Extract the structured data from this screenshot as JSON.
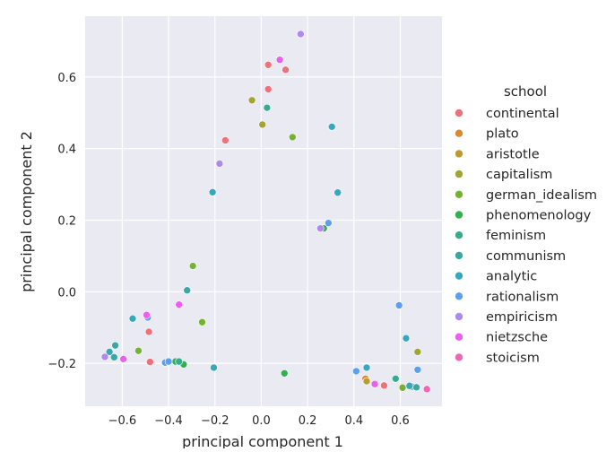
{
  "chart_data": {
    "type": "scatter",
    "xlabel": "principal component 1",
    "ylabel": "principal component 2",
    "xlim": [
      -0.76,
      0.78
    ],
    "ylim": [
      -0.32,
      0.77
    ],
    "xticks": [
      -0.6,
      -0.4,
      -0.2,
      0.0,
      0.2,
      0.4,
      0.6
    ],
    "yticks": [
      -0.2,
      0.0,
      0.2,
      0.4,
      0.6
    ],
    "xtick_labels": [
      "−0.6",
      "−0.4",
      "−0.2",
      "0.0",
      "0.2",
      "0.4",
      "0.6"
    ],
    "ytick_labels": [
      "−0.2",
      "0.0",
      "0.2",
      "0.4",
      "0.6"
    ],
    "grid": true,
    "background": "#eaeaf2",
    "legend_title": "school",
    "legend_placement": "right",
    "series": [
      {
        "name": "continental",
        "color": "#f0707a",
        "points": [
          [
            0.03,
            0.634
          ],
          [
            0.105,
            0.62
          ],
          [
            0.03,
            0.566
          ],
          [
            -0.155,
            0.423
          ],
          [
            -0.485,
            -0.112
          ],
          [
            -0.48,
            -0.196
          ],
          [
            0.53,
            -0.262
          ]
        ]
      },
      {
        "name": "plato",
        "color": "#db8930",
        "points": [
          [
            0.45,
            -0.243
          ]
        ]
      },
      {
        "name": "aristotle",
        "color": "#bb9a31",
        "points": [
          [
            0.455,
            -0.25
          ]
        ]
      },
      {
        "name": "capitalism",
        "color": "#a3a432",
        "points": [
          [
            -0.04,
            0.535
          ],
          [
            0.005,
            0.467
          ],
          [
            0.675,
            -0.168
          ]
        ]
      },
      {
        "name": "german_idealism",
        "color": "#77b032",
        "points": [
          [
            0.135,
            0.432
          ],
          [
            -0.295,
            0.072
          ],
          [
            -0.255,
            -0.085
          ],
          [
            -0.53,
            -0.165
          ],
          [
            0.61,
            -0.268
          ]
        ]
      },
      {
        "name": "phenomenology",
        "color": "#33b04e",
        "points": [
          [
            -0.335,
            -0.203
          ],
          [
            0.1,
            -0.228
          ],
          [
            0.27,
            0.177
          ],
          [
            -0.37,
            -0.195
          ]
        ]
      },
      {
        "name": "feminism",
        "color": "#35ac8c",
        "points": [
          [
            0.025,
            0.514
          ],
          [
            -0.355,
            -0.195
          ],
          [
            0.58,
            -0.243
          ],
          [
            0.65,
            -0.265
          ]
        ]
      },
      {
        "name": "communism",
        "color": "#37a8a3",
        "points": [
          [
            -0.32,
            0.004
          ],
          [
            -0.63,
            -0.15
          ],
          [
            -0.635,
            -0.183
          ],
          [
            0.67,
            -0.267
          ]
        ]
      },
      {
        "name": "analytic",
        "color": "#39a7bb",
        "points": [
          [
            0.305,
            0.461
          ],
          [
            -0.21,
            0.278
          ],
          [
            0.33,
            0.277
          ],
          [
            -0.555,
            -0.075
          ],
          [
            -0.205,
            -0.212
          ],
          [
            0.625,
            -0.13
          ],
          [
            0.455,
            -0.212
          ],
          [
            0.64,
            -0.263
          ],
          [
            -0.655,
            -0.168
          ]
        ]
      },
      {
        "name": "rationalism",
        "color": "#5b9ff0",
        "points": [
          [
            0.29,
            0.192
          ],
          [
            0.595,
            -0.038
          ],
          [
            -0.415,
            -0.198
          ],
          [
            -0.4,
            -0.195
          ],
          [
            0.41,
            -0.222
          ],
          [
            0.675,
            -0.218
          ],
          [
            -0.49,
            -0.072
          ]
        ]
      },
      {
        "name": "empiricism",
        "color": "#ad8aee",
        "points": [
          [
            0.17,
            0.72
          ],
          [
            -0.18,
            0.358
          ],
          [
            0.255,
            0.177
          ],
          [
            -0.675,
            -0.182
          ]
        ]
      },
      {
        "name": "nietzsche",
        "color": "#ea5ef0",
        "points": [
          [
            0.08,
            0.648
          ],
          [
            -0.355,
            -0.036
          ],
          [
            -0.495,
            -0.065
          ],
          [
            -0.595,
            -0.188
          ],
          [
            0.49,
            -0.258
          ]
        ]
      },
      {
        "name": "stoicism",
        "color": "#f065b6",
        "points": [
          [
            0.715,
            -0.272
          ]
        ]
      }
    ]
  }
}
